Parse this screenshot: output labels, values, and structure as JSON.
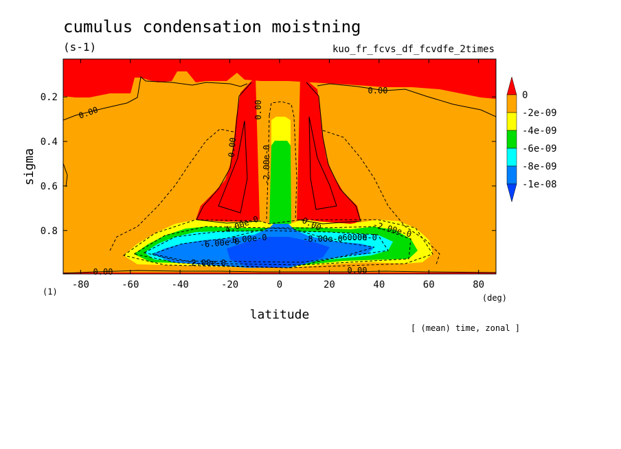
{
  "chart_data": {
    "type": "heatmap",
    "title": "cumulus condensation moistning",
    "units": "(s-1)",
    "run_name": "kuo_fr_fcvs_df_fcvdfe_2times",
    "xlabel": "latitude",
    "x_unit": "(deg)",
    "ylabel": "sigma",
    "y_unit": "(1)",
    "note": "[ (mean) time, zonal ]",
    "xlim": [
      -87,
      87
    ],
    "ylim": [
      0.995,
      0.03
    ],
    "x_ticks": [
      -80,
      -60,
      -40,
      -20,
      0,
      20,
      40,
      60,
      80
    ],
    "y_ticks": [
      0.2,
      0.4,
      0.6,
      0.8
    ],
    "colorbar": {
      "labels": [
        "0",
        "-2e-09",
        "-4e-09",
        "-6e-09",
        "-8e-09",
        "-1e-08"
      ],
      "colors": [
        "#ff0000",
        "#ffa500",
        "#ffff00",
        "#00dd00",
        "#00ffff",
        "#0080ff",
        "#0040ff"
      ]
    },
    "contour_labels": [
      "0.00",
      "0.00",
      "0.00",
      "0.00",
      "0.00",
      "0.00",
      "0.00",
      "0.00",
      "-2.00e-0",
      "-2.00e-0",
      "-2.00e-0",
      "-4.00e-0",
      "-6.00e-0",
      "-6.00e-0",
      "-6.00e-0",
      "-8.00e-0"
    ],
    "regions": [
      {
        "level": "0 (positive)",
        "color": "#ff0000",
        "where": "upper troposphere sigma<0.15, twin plumes near 15S and 15N from sigma 0.1 to 0.75, thin strip at surface"
      },
      {
        "level": "0 to -2e-09",
        "color": "#ffa500",
        "where": "most of domain"
      },
      {
        "level": "-2e-09 to -4e-09",
        "color": "#ffff00",
        "where": "equatorial column sigma 0.3-0.4, outer rim of lower-level cell"
      },
      {
        "level": "-4e-09 to -6e-09",
        "color": "#00dd00",
        "where": "equatorial column sigma 0.4-0.75, band 0.8-0.9"
      },
      {
        "level": "-6e-09 to -8e-09",
        "color": "#00ffff",
        "where": "sigma 0.82-0.92 from 45S to 30N"
      },
      {
        "level": "below -8e-09",
        "color": "#0080ff",
        "where": "core sigma 0.85-0.97 between 30S and 30N"
      }
    ]
  }
}
